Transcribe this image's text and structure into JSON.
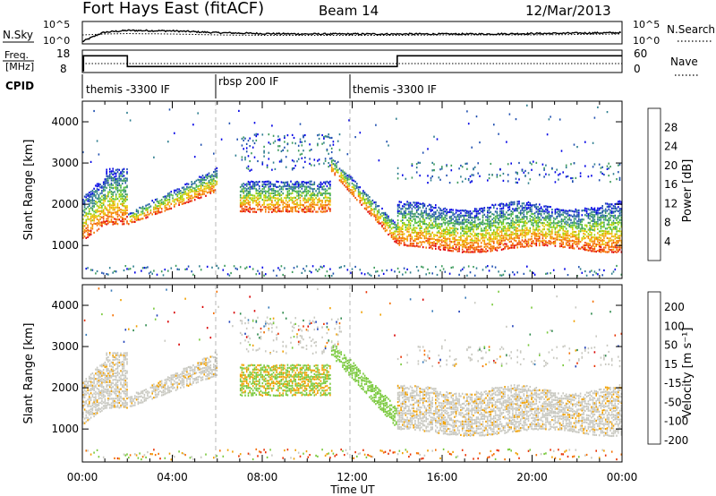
{
  "header": {
    "radar": "Fort Hays East (fitACF)",
    "beam": "Beam 14",
    "date": "12/Mar/2013"
  },
  "chart_data": [
    {
      "type": "line",
      "panel": "noise",
      "left_label": "N.Sky",
      "right_label": "N.Search",
      "left_ticks": [
        "10^5",
        "10^0"
      ],
      "right_ticks": [
        "10^5",
        "10^0"
      ],
      "series": [
        {
          "name": "N.Sky",
          "style": "solid",
          "x": [
            0,
            0.8,
            1,
            1.5,
            2,
            4,
            6,
            8,
            10,
            12,
            14,
            16,
            18,
            20,
            22,
            24
          ],
          "y": [
            0.5,
            2.3,
            2.6,
            2.8,
            3.0,
            2.9,
            2.5,
            2.3,
            2.2,
            2.2,
            2.2,
            2.2,
            2.2,
            2.3,
            2.4,
            2.5
          ]
        },
        {
          "name": "N.Search",
          "style": "dotted",
          "x": [
            0,
            1,
            2,
            4,
            6,
            8,
            10,
            12,
            14,
            16,
            18,
            20,
            22,
            24
          ],
          "y": [
            2.0,
            2.2,
            2.3,
            2.2,
            2.0,
            1.9,
            1.9,
            1.9,
            1.9,
            2.0,
            2.0,
            2.0,
            2.1,
            2.2
          ]
        }
      ],
      "ylim": [
        0,
        5
      ]
    },
    {
      "type": "line",
      "panel": "frequency",
      "left_label": "Freq.\n[MHz]",
      "right_label": "Nave",
      "left_ticks": [
        "18",
        "8"
      ],
      "right_ticks": [
        "60",
        "0"
      ],
      "series": [
        {
          "name": "Freq",
          "style": "solid",
          "x": [
            0,
            0.05,
            0.05,
            2.0,
            2.0,
            14.0,
            14.0,
            24
          ],
          "y": [
            8,
            8,
            16,
            16,
            10.2,
            10.2,
            16,
            16
          ]
        },
        {
          "name": "Nave",
          "style": "dotted",
          "x": [
            0,
            24
          ],
          "y": [
            24,
            24
          ]
        }
      ]
    },
    {
      "type": "table",
      "panel": "cpid",
      "label": "CPID",
      "segments": [
        {
          "start": 0,
          "end": 6,
          "text": "themis -3300 IF"
        },
        {
          "start": 6,
          "end": 12,
          "text": "rbsp 200 IF"
        },
        {
          "start": 12,
          "end": 24,
          "text": "themis -3300 IF"
        }
      ]
    },
    {
      "type": "heatmap",
      "panel": "power",
      "ylabel": "Slant Range [km]",
      "yticks": [
        1000,
        2000,
        3000,
        4000
      ],
      "ylim": [
        200,
        4500
      ],
      "xlim": [
        0,
        24
      ],
      "colorbar": {
        "label": "Power [dB]",
        "ticks": [
          "4",
          "8",
          "12",
          "16",
          "20",
          "24",
          "28"
        ],
        "colors": [
          "#0000e6",
          "#1f4fb0",
          "#2d7d8f",
          "#3d9b5c",
          "#4fbf3a",
          "#9fd000",
          "#e8c800",
          "#f4a000",
          "#f57a00",
          "#f04a00",
          "#e00000"
        ]
      },
      "features": [
        {
          "region": "main scatter band",
          "x": [
            0,
            24
          ],
          "range": [
            900,
            2400
          ]
        },
        {
          "region": "upper scatter",
          "x": [
            7,
            11
          ],
          "range": [
            2000,
            3800
          ]
        },
        {
          "region": "late upper band",
          "x": [
            14,
            24
          ],
          "range": [
            2500,
            3000
          ]
        }
      ]
    },
    {
      "type": "heatmap",
      "panel": "velocity",
      "ylabel": "Slant Range [km]",
      "yticks": [
        1000,
        2000,
        3000,
        4000
      ],
      "ylim": [
        200,
        4500
      ],
      "xlim": [
        0,
        24
      ],
      "xticks": [
        "00:00",
        "04:00",
        "08:00",
        "12:00",
        "16:00",
        "20:00",
        "00:00"
      ],
      "xlabel": "Time UT",
      "colorbar": {
        "label": "Velocity [m s⁻¹]",
        "ticks": [
          "200",
          "100",
          "50",
          "15",
          "-15",
          "-50",
          "-100",
          "-200"
        ],
        "colors": [
          "#1e3fb8",
          "#3478b8",
          "#2e8a4c",
          "#79c93c",
          "#c8c8c0",
          "#f0a000",
          "#f57000",
          "#e83000",
          "#d80000"
        ]
      }
    }
  ]
}
